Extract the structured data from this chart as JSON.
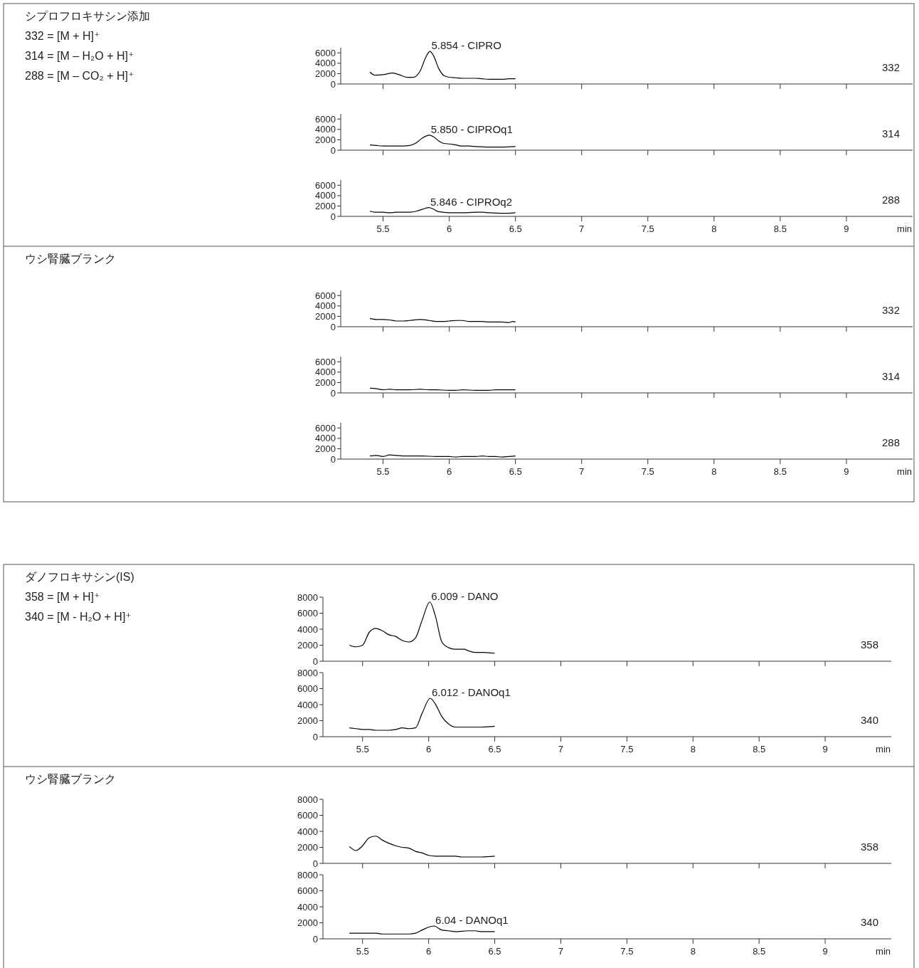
{
  "chart_data": [
    {
      "type": "line",
      "annotations": [
        "シプロフロキサシン添加",
        "332 = [M + H]⁺",
        "314 = [M – H₂O + H]⁺",
        "288 = [M – CO₂ + H]⁺",
        {
          "text": "5.854 - CIPRO",
          "x": 5.854,
          "y": 6300
        }
      ],
      "xlim": [
        5.18,
        9.5
      ],
      "xticks": [
        5.5,
        6,
        6.5,
        7,
        7.5,
        8,
        8.5,
        9
      ],
      "ylim": [
        0,
        7000
      ],
      "yticks": [
        0,
        2000,
        4000,
        6000
      ],
      "tick_labels": "y",
      "series": [
        {
          "name": "332",
          "color": "#000000",
          "x": [
            5.4,
            5.44,
            5.5,
            5.57,
            5.62,
            5.68,
            5.73,
            5.78,
            5.82,
            5.854,
            5.88,
            5.92,
            5.96,
            6.0,
            6.05,
            6.1,
            6.2,
            6.25,
            6.3,
            6.35,
            6.4,
            6.45,
            6.5
          ],
          "values": [
            2300,
            1700,
            1800,
            2100,
            1800,
            1300,
            1300,
            2500,
            5000,
            6300,
            5500,
            3000,
            1600,
            1300,
            1200,
            1100,
            1100,
            1000,
            900,
            900,
            900,
            1000,
            1000
          ]
        }
      ]
    },
    {
      "type": "line",
      "annotations": [
        {
          "text": "5.850 - CIPROq1",
          "x": 5.85,
          "y": 2900
        }
      ],
      "xlim": [
        5.18,
        9.5
      ],
      "xticks": [
        5.5,
        6,
        6.5,
        7,
        7.5,
        8,
        8.5,
        9
      ],
      "ylim": [
        0,
        7000
      ],
      "yticks": [
        0,
        2000,
        4000,
        6000
      ],
      "tick_labels": "y",
      "series": [
        {
          "name": "314",
          "color": "#000000",
          "x": [
            5.4,
            5.45,
            5.5,
            5.55,
            5.6,
            5.65,
            5.7,
            5.75,
            5.8,
            5.85,
            5.88,
            5.92,
            5.96,
            6.0,
            6.05,
            6.1,
            6.15,
            6.2,
            6.3,
            6.4,
            6.5
          ],
          "values": [
            1000,
            900,
            800,
            800,
            800,
            800,
            900,
            1400,
            2400,
            2900,
            2600,
            1800,
            1300,
            1200,
            1000,
            800,
            800,
            700,
            600,
            600,
            700
          ]
        }
      ]
    },
    {
      "type": "line",
      "annotations": [
        {
          "text": "5.846 - CIPROq2",
          "x": 5.846,
          "y": 1700
        }
      ],
      "xlabel": "min",
      "xlim": [
        5.18,
        9.5
      ],
      "xticks": [
        5.5,
        6,
        6.5,
        7,
        7.5,
        8,
        8.5,
        9
      ],
      "ylim": [
        0,
        7000
      ],
      "yticks": [
        0,
        2000,
        4000,
        6000
      ],
      "series": [
        {
          "name": "288",
          "color": "#000000",
          "x": [
            5.4,
            5.44,
            5.5,
            5.55,
            5.6,
            5.65,
            5.7,
            5.75,
            5.8,
            5.846,
            5.88,
            5.92,
            6.0,
            6.1,
            6.2,
            6.25,
            6.3,
            6.4,
            6.45,
            6.5
          ],
          "values": [
            1000,
            800,
            800,
            700,
            800,
            800,
            800,
            1000,
            1400,
            1700,
            1400,
            900,
            700,
            700,
            800,
            800,
            700,
            600,
            600,
            700
          ]
        }
      ]
    },
    {
      "type": "line",
      "annotations": [
        "ウシ腎臓ブランク"
      ],
      "xlim": [
        5.18,
        9.5
      ],
      "xticks": [
        5.5,
        6,
        6.5,
        7,
        7.5,
        8,
        8.5,
        9
      ],
      "ylim": [
        0,
        7000
      ],
      "yticks": [
        0,
        2000,
        4000,
        6000
      ],
      "tick_labels": "y",
      "series": [
        {
          "name": "332",
          "color": "#000000",
          "x": [
            5.4,
            5.45,
            5.5,
            5.55,
            5.6,
            5.65,
            5.7,
            5.78,
            5.85,
            5.9,
            5.95,
            6.0,
            6.06,
            6.1,
            6.15,
            6.2,
            6.25,
            6.3,
            6.4,
            6.45,
            6.48,
            6.5
          ],
          "values": [
            1600,
            1400,
            1400,
            1300,
            1100,
            1100,
            1200,
            1400,
            1200,
            1000,
            1000,
            1100,
            1200,
            1200,
            1000,
            1000,
            1000,
            900,
            900,
            800,
            1000,
            900
          ]
        }
      ]
    },
    {
      "type": "line",
      "xlim": [
        5.18,
        9.5
      ],
      "xticks": [
        5.5,
        6,
        6.5,
        7,
        7.5,
        8,
        8.5,
        9
      ],
      "ylim": [
        0,
        7000
      ],
      "yticks": [
        0,
        2000,
        4000,
        6000
      ],
      "tick_labels": "y",
      "series": [
        {
          "name": "314",
          "color": "#000000",
          "x": [
            5.4,
            5.45,
            5.5,
            5.55,
            5.6,
            5.7,
            5.78,
            5.85,
            5.9,
            6.0,
            6.05,
            6.1,
            6.2,
            6.3,
            6.35,
            6.45,
            6.5
          ],
          "values": [
            900,
            800,
            600,
            700,
            600,
            600,
            700,
            600,
            600,
            500,
            500,
            600,
            500,
            500,
            600,
            600,
            600
          ]
        }
      ]
    },
    {
      "type": "line",
      "xlabel": "min",
      "xlim": [
        5.18,
        9.5
      ],
      "xticks": [
        5.5,
        6,
        6.5,
        7,
        7.5,
        8,
        8.5,
        9
      ],
      "ylim": [
        0,
        7000
      ],
      "yticks": [
        0,
        2000,
        4000,
        6000
      ],
      "series": [
        {
          "name": "288",
          "color": "#000000",
          "x": [
            5.4,
            5.45,
            5.5,
            5.55,
            5.6,
            5.65,
            5.7,
            5.8,
            5.9,
            6.0,
            6.05,
            6.1,
            6.2,
            6.25,
            6.3,
            6.35,
            6.4,
            6.45,
            6.5
          ],
          "values": [
            600,
            700,
            500,
            800,
            700,
            600,
            600,
            600,
            500,
            500,
            400,
            500,
            500,
            600,
            500,
            500,
            400,
            500,
            600
          ]
        }
      ]
    },
    {
      "type": "line",
      "annotations": [
        "ダノフロキサシン(IS)",
        "358 = [M + H]⁺",
        "340 = [M - H₂O + H]⁺",
        {
          "text": "6.009 - DANO",
          "x": 6.009,
          "y": 7400
        }
      ],
      "xlim": [
        5.2,
        9.5
      ],
      "xticks": [
        5.5,
        6,
        6.5,
        7,
        7.5,
        8,
        8.5,
        9
      ],
      "ylim": [
        0,
        8000
      ],
      "yticks": [
        0,
        2000,
        4000,
        6000,
        8000
      ],
      "tick_labels": "y",
      "series": [
        {
          "name": "358",
          "color": "#000000",
          "x": [
            5.4,
            5.45,
            5.5,
            5.55,
            5.6,
            5.65,
            5.7,
            5.75,
            5.8,
            5.85,
            5.9,
            5.95,
            6.009,
            6.05,
            6.1,
            6.15,
            6.2,
            6.27,
            6.3,
            6.35,
            6.4,
            6.5
          ],
          "values": [
            2000,
            1800,
            2000,
            3600,
            4100,
            3800,
            3300,
            3100,
            2600,
            2400,
            2900,
            5100,
            7400,
            5700,
            2400,
            1700,
            1500,
            1500,
            1300,
            1100,
            1100,
            1000
          ]
        }
      ]
    },
    {
      "type": "line",
      "annotations": [
        {
          "text": "6.012 - DANOq1",
          "x": 6.012,
          "y": 4800
        }
      ],
      "xlabel": "min",
      "xlim": [
        5.2,
        9.5
      ],
      "xticks": [
        5.5,
        6,
        6.5,
        7,
        7.5,
        8,
        8.5,
        9
      ],
      "ylim": [
        0,
        8000
      ],
      "yticks": [
        0,
        2000,
        4000,
        6000,
        8000
      ],
      "series": [
        {
          "name": "340",
          "color": "#000000",
          "x": [
            5.4,
            5.45,
            5.5,
            5.55,
            5.6,
            5.65,
            5.7,
            5.75,
            5.8,
            5.85,
            5.9,
            5.95,
            6.012,
            6.05,
            6.1,
            6.15,
            6.2,
            6.27,
            6.3,
            6.4,
            6.5
          ],
          "values": [
            1100,
            1000,
            900,
            900,
            800,
            800,
            800,
            900,
            1100,
            1000,
            1100,
            2900,
            4800,
            4100,
            2500,
            1600,
            1200,
            1200,
            1200,
            1200,
            1300
          ]
        }
      ]
    },
    {
      "type": "line",
      "annotations": [
        "ウシ腎臓ブランク"
      ],
      "xlim": [
        5.2,
        9.5
      ],
      "xticks": [
        5.5,
        6,
        6.5,
        7,
        7.5,
        8,
        8.5,
        9
      ],
      "ylim": [
        0,
        8000
      ],
      "yticks": [
        0,
        2000,
        4000,
        6000,
        8000
      ],
      "tick_labels": "y",
      "series": [
        {
          "name": "358",
          "color": "#000000",
          "x": [
            5.4,
            5.45,
            5.5,
            5.55,
            5.6,
            5.65,
            5.7,
            5.75,
            5.8,
            5.85,
            5.9,
            5.95,
            6.0,
            6.05,
            6.1,
            6.2,
            6.25,
            6.3,
            6.4,
            6.5
          ],
          "values": [
            2100,
            1600,
            2200,
            3200,
            3400,
            2900,
            2500,
            2200,
            2000,
            1900,
            1500,
            1300,
            1000,
            900,
            900,
            900,
            800,
            800,
            800,
            900
          ]
        }
      ]
    },
    {
      "type": "line",
      "annotations": [
        {
          "text": "6.04 - DANOq1",
          "x": 6.04,
          "y": 1600
        }
      ],
      "xlabel": "min",
      "xlim": [
        5.2,
        9.5
      ],
      "xticks": [
        5.5,
        6,
        6.5,
        7,
        7.5,
        8,
        8.5,
        9
      ],
      "ylim": [
        0,
        8000
      ],
      "yticks": [
        0,
        2000,
        4000,
        6000,
        8000
      ],
      "series": [
        {
          "name": "340",
          "color": "#000000",
          "x": [
            5.4,
            5.5,
            5.6,
            5.65,
            5.7,
            5.75,
            5.8,
            5.85,
            5.9,
            5.95,
            6.04,
            6.1,
            6.15,
            6.2,
            6.3,
            6.35,
            6.4,
            6.5
          ],
          "values": [
            700,
            700,
            700,
            600,
            600,
            600,
            600,
            600,
            700,
            1100,
            1600,
            1100,
            1000,
            900,
            1000,
            1000,
            900,
            900
          ]
        }
      ]
    }
  ]
}
